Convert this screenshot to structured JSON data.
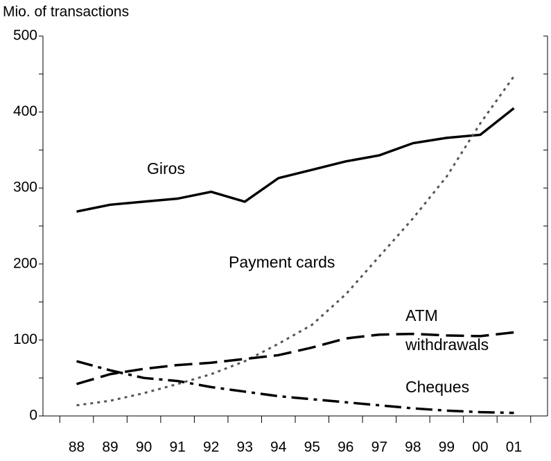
{
  "chart_data": {
    "type": "line",
    "y_axis_label": "Mio. of transactions",
    "categories": [
      "88",
      "89",
      "90",
      "91",
      "92",
      "93",
      "94",
      "95",
      "96",
      "97",
      "98",
      "99",
      "00",
      "01"
    ],
    "series": [
      {
        "name": "Giros",
        "color": "#000000",
        "dash": "solid",
        "values": [
          269,
          278,
          282,
          286,
          295,
          282,
          313,
          324,
          335,
          343,
          359,
          366,
          370,
          405
        ]
      },
      {
        "name": "Payment cards",
        "color": "#555555",
        "dash": "dotted",
        "values": [
          14,
          20,
          30,
          42,
          55,
          72,
          95,
          120,
          160,
          210,
          260,
          315,
          385,
          447
        ]
      },
      {
        "name": "ATM withdrawals",
        "color": "#000000",
        "dash": "dashed",
        "values": [
          42,
          55,
          62,
          67,
          70,
          75,
          80,
          90,
          102,
          107,
          108,
          106,
          105,
          110
        ]
      },
      {
        "name": "Cheques",
        "color": "#000000",
        "dash": "dashdot",
        "values": [
          72,
          60,
          50,
          46,
          38,
          32,
          26,
          22,
          18,
          14,
          10,
          7,
          5,
          4
        ]
      }
    ],
    "ylim": [
      0,
      500
    ],
    "yticks": [
      0,
      100,
      200,
      300,
      400,
      500
    ],
    "minor_yticks": [
      50,
      150,
      250,
      350,
      450
    ],
    "grid": false
  }
}
